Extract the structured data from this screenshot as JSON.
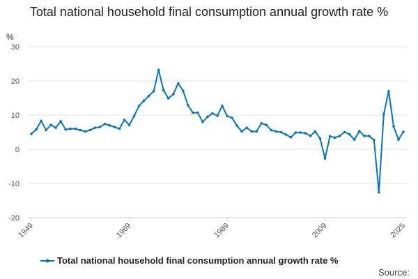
{
  "chart_data": {
    "type": "line",
    "title": "Total national household final consumption annual growth rate %",
    "ylabel": "%",
    "xlabel": "",
    "ylim": [
      -20,
      30
    ],
    "yticks": [
      30,
      20,
      10,
      0,
      -10,
      -20
    ],
    "xticks": [
      1949,
      1969,
      1989,
      2009,
      2025
    ],
    "xlim": [
      1949,
      2025
    ],
    "grid": "horizontal",
    "legend": "bottom",
    "color": "#0075c1",
    "x_start": 1949,
    "series": [
      {
        "name": "Total national household final consumption annual growth rate %",
        "x": [
          1949,
          1950,
          1951,
          1952,
          1953,
          1954,
          1955,
          1956,
          1957,
          1958,
          1959,
          1960,
          1961,
          1962,
          1963,
          1964,
          1965,
          1966,
          1967,
          1968,
          1969,
          1970,
          1971,
          1972,
          1973,
          1974,
          1975,
          1976,
          1977,
          1978,
          1979,
          1980,
          1981,
          1982,
          1983,
          1984,
          1985,
          1986,
          1987,
          1988,
          1989,
          1990,
          1991,
          1992,
          1993,
          1994,
          1995,
          1996,
          1997,
          1998,
          1999,
          2000,
          2001,
          2002,
          2003,
          2004,
          2005,
          2006,
          2007,
          2008,
          2009,
          2010,
          2011,
          2012,
          2013,
          2014,
          2015,
          2016,
          2017,
          2018,
          2019,
          2020,
          2021,
          2022,
          2023,
          2024,
          2025
        ],
        "values": [
          4.5,
          5.8,
          8.3,
          5.6,
          7.1,
          6.3,
          8.2,
          5.8,
          6.0,
          6.0,
          5.6,
          5.2,
          5.6,
          6.3,
          6.5,
          7.4,
          7.0,
          6.5,
          6.0,
          8.6,
          7.1,
          9.7,
          12.7,
          14.2,
          15.6,
          17.0,
          23.2,
          17.3,
          14.9,
          16.1,
          19.3,
          17.1,
          12.9,
          10.7,
          10.7,
          8.0,
          9.5,
          10.5,
          9.8,
          12.7,
          9.7,
          9.2,
          6.9,
          5.2,
          6.3,
          5.2,
          5.2,
          7.6,
          7.1,
          5.6,
          5.2,
          5.0,
          4.3,
          3.5,
          4.9,
          4.9,
          4.7,
          3.9,
          5.2,
          3.1,
          -2.7,
          3.8,
          3.4,
          3.9,
          5.0,
          4.4,
          2.8,
          5.3,
          3.9,
          3.9,
          2.7,
          -12.6,
          10.3,
          17.0,
          6.7,
          2.8,
          5.1
        ]
      }
    ]
  },
  "source_label": "Source:"
}
